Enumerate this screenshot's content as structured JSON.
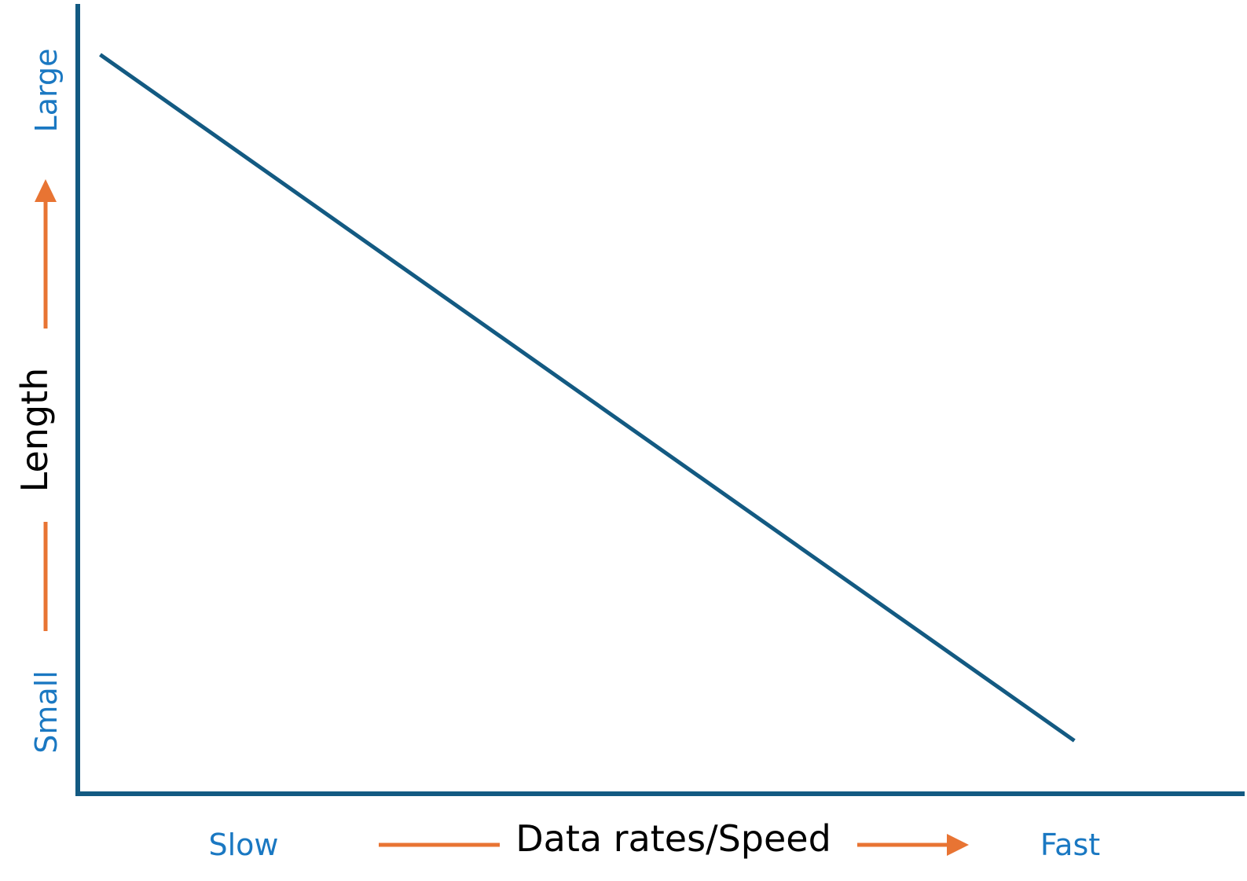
{
  "colors": {
    "axis": "#135a82",
    "line": "#135a82",
    "arrow": "#e87433",
    "end_label": "#1a78c2",
    "axis_label": "#000000"
  },
  "chart_data": {
    "type": "line",
    "title": "",
    "xlabel": "Data rates/Speed",
    "ylabel": "Length",
    "x_end_labels": {
      "low": "Slow",
      "high": "Fast"
    },
    "y_end_labels": {
      "low": "Small",
      "high": "Large"
    },
    "xlim": [
      0,
      1
    ],
    "ylim": [
      0,
      1
    ],
    "grid": false,
    "series": [
      {
        "x": [
          0.02,
          0.89
        ],
        "y": [
          0.94,
          0.06
        ]
      }
    ]
  }
}
